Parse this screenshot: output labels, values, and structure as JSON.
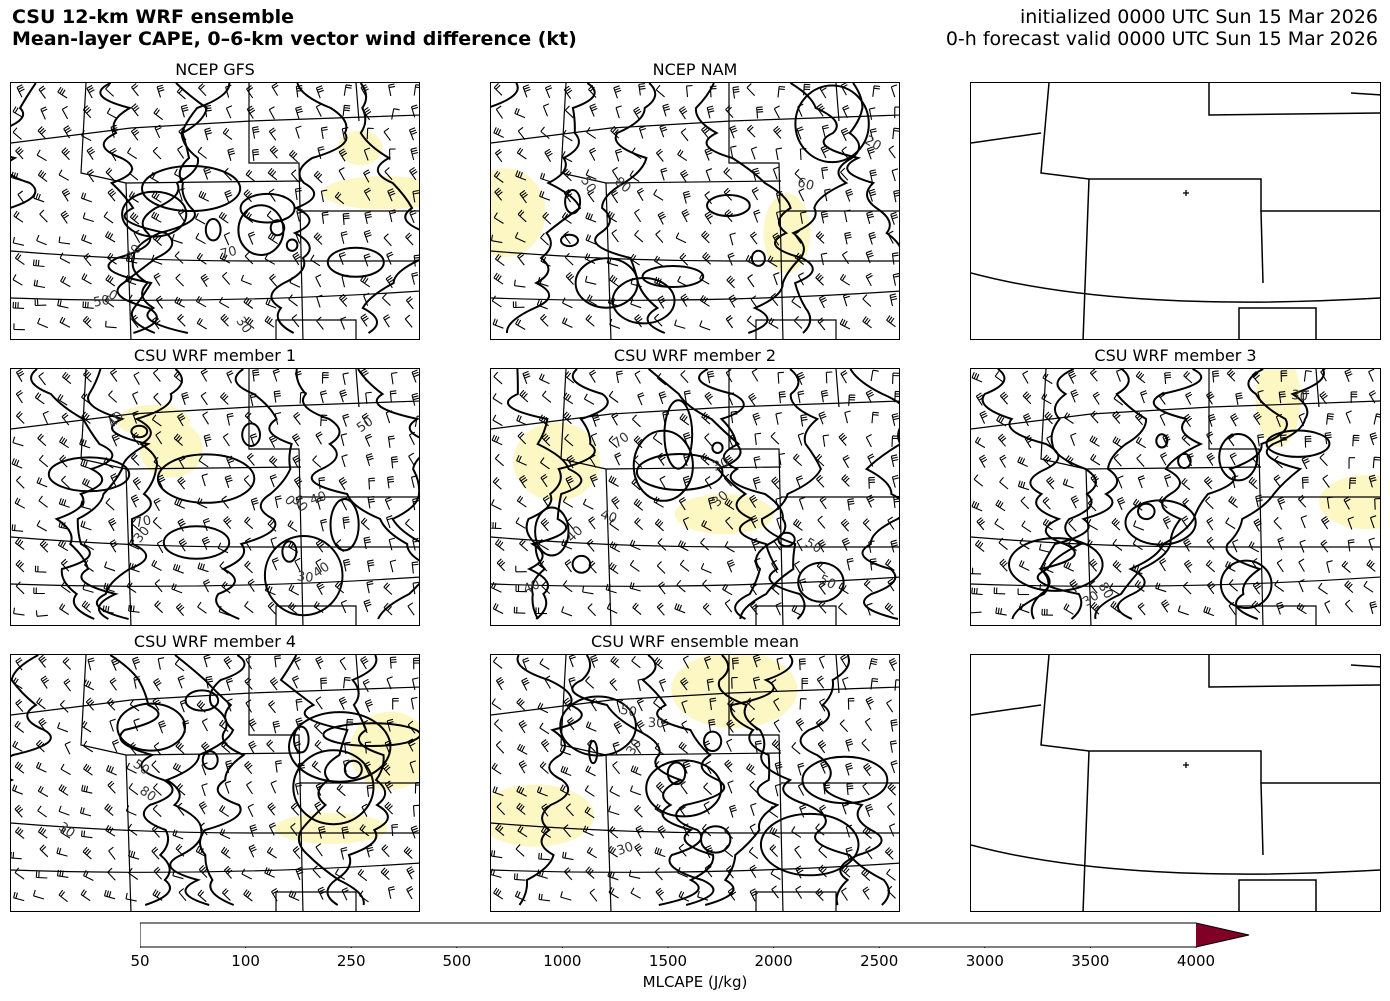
{
  "header": {
    "title_line1": "CSU 12-km WRF ensemble",
    "title_line2": "Mean-layer CAPE, 0–6-km vector wind difference (kt)",
    "init_line": "initialized 0000 UTC Sun 15 Mar 2026",
    "valid_line": "0-h forecast valid 0000 UTC Sun 15 Mar 2026"
  },
  "panels": [
    {
      "id": "gfs",
      "title": "NCEP GFS",
      "has_data": true,
      "labels": [
        "70",
        "70",
        "50",
        "30",
        "0"
      ]
    },
    {
      "id": "nam",
      "title": "NCEP NAM",
      "has_data": true,
      "labels": [
        "80",
        "60",
        "50",
        "20"
      ]
    },
    {
      "id": "blank-top",
      "title": "",
      "has_data": false,
      "labels": []
    },
    {
      "id": "m1",
      "title": "CSU WRF member 1",
      "has_data": true,
      "labels": [
        "70",
        "30",
        "40",
        "40",
        "30",
        "40",
        "50",
        "50",
        "0"
      ]
    },
    {
      "id": "m2",
      "title": "CSU WRF member 2",
      "has_data": true,
      "labels": [
        "70",
        "30",
        "40",
        "40",
        "30",
        "40",
        "50",
        "50"
      ]
    },
    {
      "id": "m3",
      "title": "CSU WRF member 3",
      "has_data": true,
      "labels": [
        "80",
        "30",
        "30"
      ]
    },
    {
      "id": "m4",
      "title": "CSU WRF member 4",
      "has_data": true,
      "labels": [
        "80",
        "30",
        "50"
      ]
    },
    {
      "id": "mean",
      "title": "CSU WRF ensemble mean",
      "has_data": true,
      "labels": [
        "50",
        "30",
        "30",
        "30"
      ]
    },
    {
      "id": "blank-bottom",
      "title": "",
      "has_data": false,
      "labels": []
    }
  ],
  "colorbar": {
    "label": "MLCAPE (J/kg)",
    "ticks": [
      "50",
      "100",
      "250",
      "500",
      "1000",
      "1500",
      "2000",
      "2500",
      "3000",
      "3500",
      "4000"
    ],
    "colors": [
      "#ffffcc",
      "#fff5b8",
      "#ffeda0",
      "#fed976",
      "#feb24c",
      "#fd8d3c",
      "#fc4e2a",
      "#e31a1c",
      "#bd0026",
      "#800026"
    ],
    "extend_color": "#800026"
  },
  "colors": {
    "cape_fill": "#fdf7c3",
    "contour": "#000000",
    "border": "#000000"
  }
}
